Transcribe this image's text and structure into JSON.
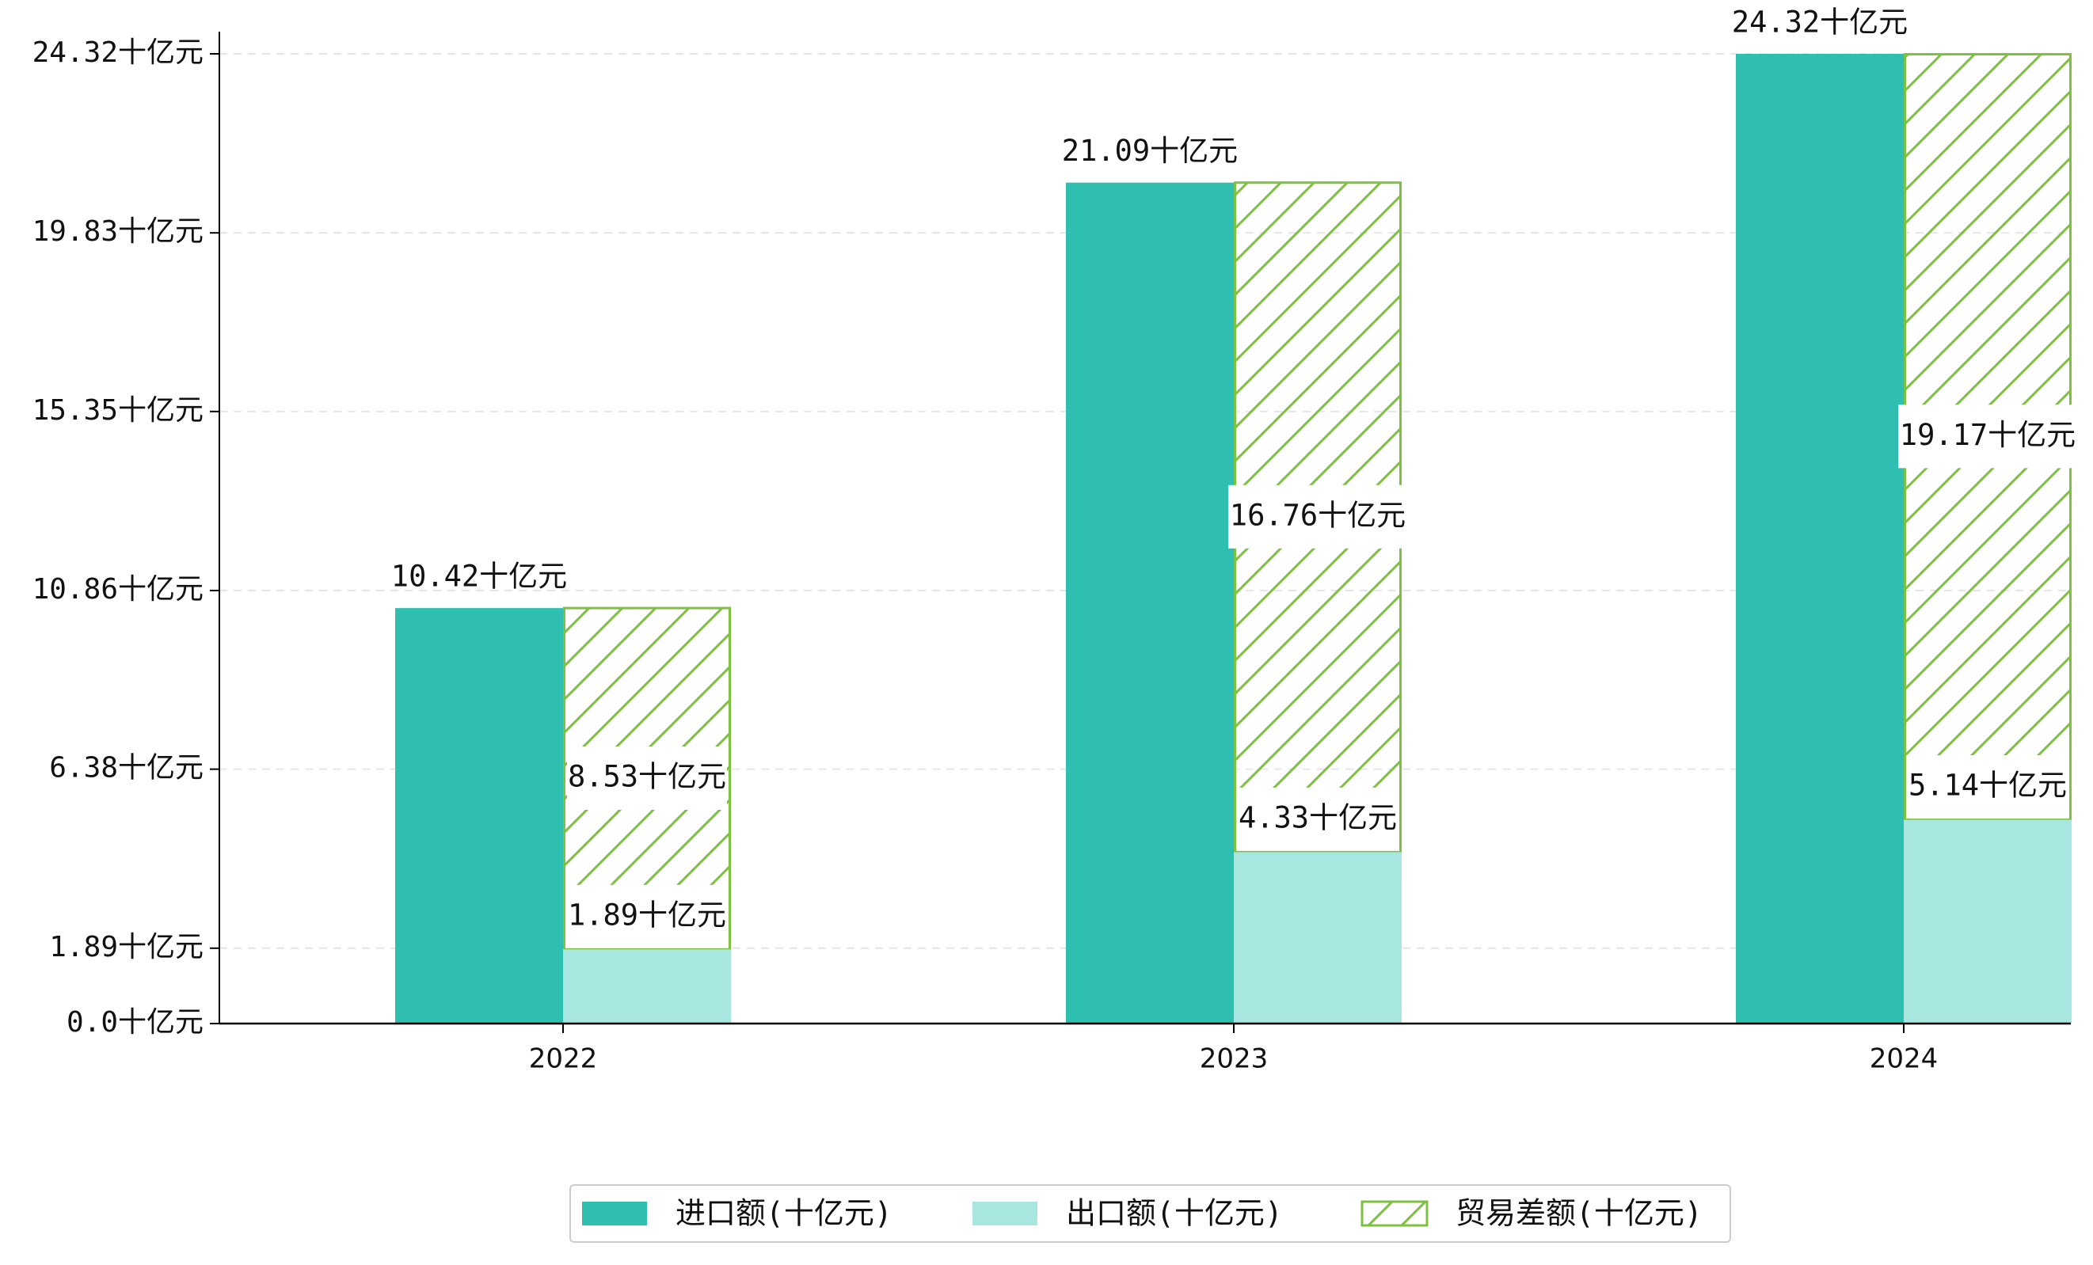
{
  "chart_data": {
    "type": "bar",
    "categories": [
      "2022",
      "2023",
      "2024"
    ],
    "series": [
      {
        "name": "进口额(十亿元)",
        "values": [
          10.42,
          21.09,
          24.32
        ],
        "color": "#2ebfb1",
        "labels": [
          "10.42十亿元",
          "21.09十亿元",
          "24.32十亿元"
        ]
      },
      {
        "name": "出口额(十亿元)",
        "values": [
          1.89,
          4.33,
          5.14
        ],
        "color": "#a8e6e0",
        "labels": [
          "1.89十亿元",
          "4.33十亿元",
          "5.14十亿元"
        ]
      },
      {
        "name": "贸易差额(十亿元)",
        "values": [
          8.53,
          16.76,
          19.17
        ],
        "color": "#7cc140",
        "hatch": true,
        "stacked_on": "出口额(十亿元)",
        "labels": [
          "8.53十亿元",
          "16.76十亿元",
          "19.17十亿元"
        ]
      }
    ],
    "y_ticks": [
      {
        "value": 0.0,
        "label": "0.0十亿元"
      },
      {
        "value": 1.89,
        "label": "1.89十亿元"
      },
      {
        "value": 6.38,
        "label": "6.38十亿元"
      },
      {
        "value": 10.86,
        "label": "10.86十亿元"
      },
      {
        "value": 15.35,
        "label": "15.35十亿元"
      },
      {
        "value": 19.83,
        "label": "19.83十亿元"
      },
      {
        "value": 24.32,
        "label": "24.32十亿元"
      }
    ],
    "ylim": [
      0,
      24.32
    ],
    "grid": "horizontal-dashed",
    "legend_position": "bottom-center",
    "xlabel": "",
    "ylabel": ""
  }
}
